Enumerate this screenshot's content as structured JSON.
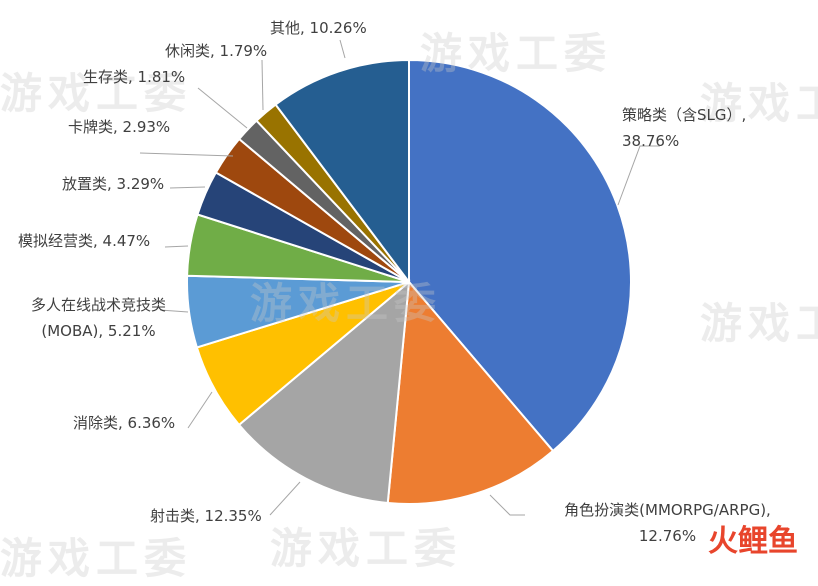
{
  "chart_data": {
    "type": "pie",
    "value_labels": [
      "策略类（含SLG）, 38.76%",
      "角色扮演类(MMORPG/ARPG), 12.76%",
      "射击类, 12.35%",
      "消除类, 6.36%",
      "多人在线战术竞技类 (MOBA), 5.21%",
      "模拟经营类, 4.47%",
      "放置类, 3.29%",
      "卡牌类, 2.93%",
      "生存类, 1.81%",
      "休闲类, 1.79%",
      "其他, 10.26%"
    ],
    "values": [
      38.76,
      12.76,
      12.35,
      6.36,
      5.21,
      4.47,
      3.29,
      2.93,
      1.81,
      1.79,
      10.26
    ],
    "colors": [
      "#4472c4",
      "#ed7d31",
      "#a5a5a5",
      "#ffc000",
      "#5b9bd5",
      "#70ad47",
      "#264478",
      "#9e480e",
      "#636363",
      "#997300",
      "#255e91"
    ]
  },
  "watermark": "游戏工委",
  "logo_text": "火鲤鱼"
}
